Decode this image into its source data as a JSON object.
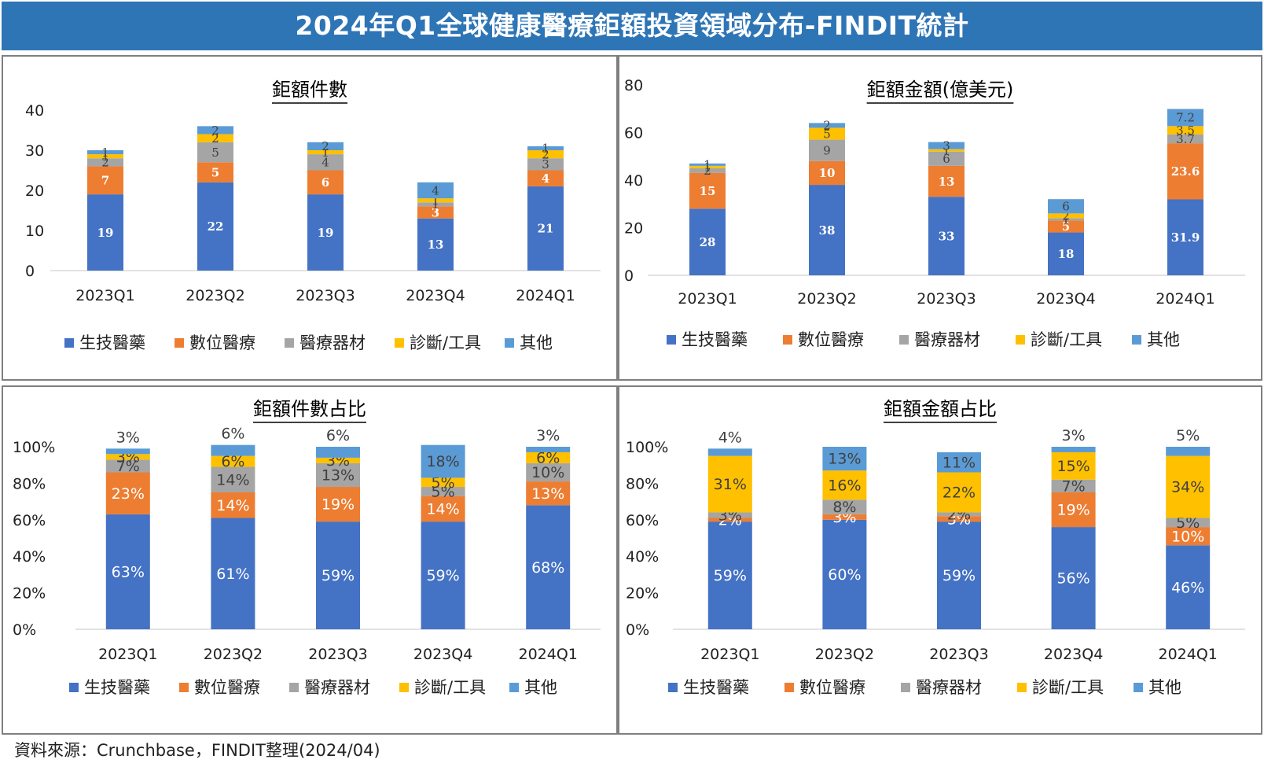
{
  "page": {
    "title": "2024年Q1全球健康醫療鉅額投資領域分布-FINDIT統計",
    "source": "資料來源：Crunchbase，FINDIT整理(2024/04)"
  },
  "colors": {
    "banner": "#2e75b6",
    "series": [
      "#4472c4",
      "#ed7d31",
      "#a5a5a5",
      "#ffc000",
      "#5b9bd5"
    ]
  },
  "chart_data": [
    {
      "type": "bar",
      "stacked": true,
      "title": "鉅額件數",
      "categories": [
        "2023Q1",
        "2023Q2",
        "2023Q3",
        "2023Q4",
        "2024Q1"
      ],
      "yticks": [
        "0",
        "10",
        "20",
        "30",
        "40"
      ],
      "ylim": [
        0,
        40
      ],
      "legend_position": "bottom",
      "series": [
        {
          "name": "生技醫藥",
          "values": [
            19,
            22,
            19,
            13,
            21
          ],
          "labels": [
            "19",
            "22",
            "19",
            "13",
            "21"
          ]
        },
        {
          "name": "數位醫療",
          "values": [
            7,
            5,
            6,
            3,
            4
          ],
          "labels": [
            "7",
            "5",
            "6",
            "3",
            "4"
          ]
        },
        {
          "name": "醫療器材",
          "values": [
            2,
            5,
            4,
            1,
            3
          ],
          "labels": [
            "2",
            "5",
            "4",
            "1",
            "3"
          ]
        },
        {
          "name": "診斷/工具",
          "values": [
            1,
            2,
            1,
            1,
            2
          ],
          "labels": [
            "1",
            "2",
            "1",
            "1",
            "2"
          ]
        },
        {
          "name": "其他",
          "values": [
            1,
            2,
            2,
            4,
            1
          ],
          "labels": [
            "1",
            "2",
            "2",
            "4",
            "1"
          ]
        }
      ]
    },
    {
      "type": "bar",
      "stacked": true,
      "title": "鉅額金額(億美元)",
      "categories": [
        "2023Q1",
        "2023Q2",
        "2023Q3",
        "2023Q4",
        "2024Q1"
      ],
      "yticks": [
        "0",
        "20",
        "40",
        "60",
        "80"
      ],
      "ylim": [
        0,
        80
      ],
      "legend_position": "bottom",
      "series": [
        {
          "name": "生技醫藥",
          "values": [
            28,
            38,
            33,
            18,
            31.9
          ],
          "labels": [
            "28",
            "38",
            "33",
            "18",
            "31.9"
          ]
        },
        {
          "name": "數位醫療",
          "values": [
            15,
            10,
            13,
            5,
            23.6
          ],
          "labels": [
            "15",
            "10",
            "13",
            "5",
            "23.6"
          ]
        },
        {
          "name": "醫療器材",
          "values": [
            2,
            9,
            6,
            1,
            3.7
          ],
          "labels": [
            "2",
            "9",
            "6",
            "1",
            "3.7"
          ]
        },
        {
          "name": "診斷/工具",
          "values": [
            1,
            5,
            1,
            2,
            3.5
          ],
          "labels": [
            "1",
            "5",
            "1",
            "2",
            "3.5"
          ]
        },
        {
          "name": "其他",
          "values": [
            1,
            2,
            3,
            6,
            7.2
          ],
          "labels": [
            "1",
            "2",
            "3",
            "6",
            "7.2"
          ]
        }
      ]
    },
    {
      "type": "bar",
      "stacked": true,
      "title": "鉅額件數占比",
      "categories": [
        "2023Q1",
        "2023Q2",
        "2023Q3",
        "2023Q4",
        "2024Q1"
      ],
      "yticks": [
        "0%",
        "20%",
        "40%",
        "60%",
        "80%",
        "100%"
      ],
      "ylim": [
        0,
        100
      ],
      "legend_position": "bottom",
      "series": [
        {
          "name": "生技醫藥",
          "values": [
            63,
            61,
            59,
            59,
            68
          ],
          "labels": [
            "63%",
            "61%",
            "59%",
            "59%",
            "68%"
          ]
        },
        {
          "name": "數位醫療",
          "values": [
            23,
            14,
            19,
            14,
            13
          ],
          "labels": [
            "23%",
            "14%",
            "19%",
            "14%",
            "13%"
          ]
        },
        {
          "name": "醫療器材",
          "values": [
            7,
            14,
            13,
            5,
            10
          ],
          "labels": [
            "7%",
            "14%",
            "13%",
            "5%",
            "10%"
          ]
        },
        {
          "name": "診斷/工具",
          "values": [
            3,
            6,
            3,
            5,
            6
          ],
          "labels": [
            "3%",
            "6%",
            "3%",
            "5%",
            "6%"
          ]
        },
        {
          "name": "其他",
          "values": [
            3,
            6,
            6,
            18,
            3
          ],
          "labels": [
            "3%",
            "6%",
            "6%",
            "18%",
            "3%"
          ]
        }
      ]
    },
    {
      "type": "bar",
      "stacked": true,
      "title": "鉅額金額占比",
      "categories": [
        "2023Q1",
        "2023Q2",
        "2023Q3",
        "2023Q4",
        "2024Q1"
      ],
      "yticks": [
        "0%",
        "20%",
        "40%",
        "60%",
        "80%",
        "100%"
      ],
      "ylim": [
        0,
        100
      ],
      "legend_position": "bottom",
      "series": [
        {
          "name": "生技醫藥",
          "values": [
            59,
            60,
            59,
            56,
            46
          ],
          "labels": [
            "59%",
            "60%",
            "59%",
            "56%",
            "46%"
          ]
        },
        {
          "name": "數位醫療",
          "values": [
            2,
            3,
            3,
            19,
            10
          ],
          "labels": [
            "2%",
            "3%",
            "3%",
            "19%",
            "10%"
          ]
        },
        {
          "name": "醫療器材",
          "values": [
            3,
            8,
            2,
            7,
            5
          ],
          "labels": [
            "3%",
            "8%",
            "2%",
            "7%",
            "5%"
          ]
        },
        {
          "name": "診斷/工具",
          "values": [
            31,
            16,
            22,
            15,
            34
          ],
          "labels": [
            "31%",
            "16%",
            "22%",
            "15%",
            "34%"
          ]
        },
        {
          "name": "其他",
          "values": [
            4,
            13,
            11,
            3,
            5
          ],
          "labels": [
            "4%",
            "13%",
            "11%",
            "3%",
            "5%"
          ]
        }
      ]
    }
  ]
}
